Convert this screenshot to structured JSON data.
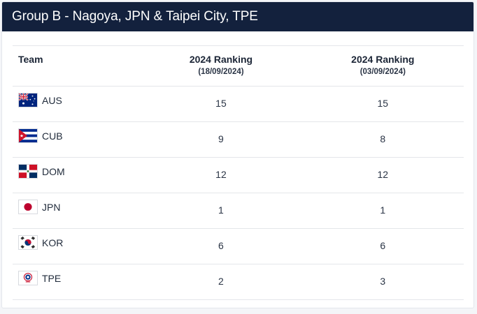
{
  "header": {
    "title": "Group B - Nagoya, JPN & Taipei City, TPE"
  },
  "table": {
    "columns": [
      {
        "label": "Team",
        "sub": ""
      },
      {
        "label": "2024 Ranking",
        "sub": "(18/09/2024)"
      },
      {
        "label": "2024 Ranking",
        "sub": "(03/09/2024)"
      }
    ],
    "rows": [
      {
        "team": "AUS",
        "flag_icon": "australia-flag-icon",
        "rank_a": "15",
        "rank_b": "15"
      },
      {
        "team": "CUB",
        "flag_icon": "cuba-flag-icon",
        "rank_a": "9",
        "rank_b": "8"
      },
      {
        "team": "DOM",
        "flag_icon": "dominican-republic-flag-icon",
        "rank_a": "12",
        "rank_b": "12"
      },
      {
        "team": "JPN",
        "flag_icon": "japan-flag-icon",
        "rank_a": "1",
        "rank_b": "1"
      },
      {
        "team": "KOR",
        "flag_icon": "south-korea-flag-icon",
        "rank_a": "6",
        "rank_b": "6"
      },
      {
        "team": "TPE",
        "flag_icon": "chinese-taipei-flag-icon",
        "rank_a": "2",
        "rank_b": "3"
      }
    ]
  },
  "colors": {
    "header_bg": "#13213d",
    "header_text": "#ffffff",
    "divider": "#e4e6ea"
  }
}
